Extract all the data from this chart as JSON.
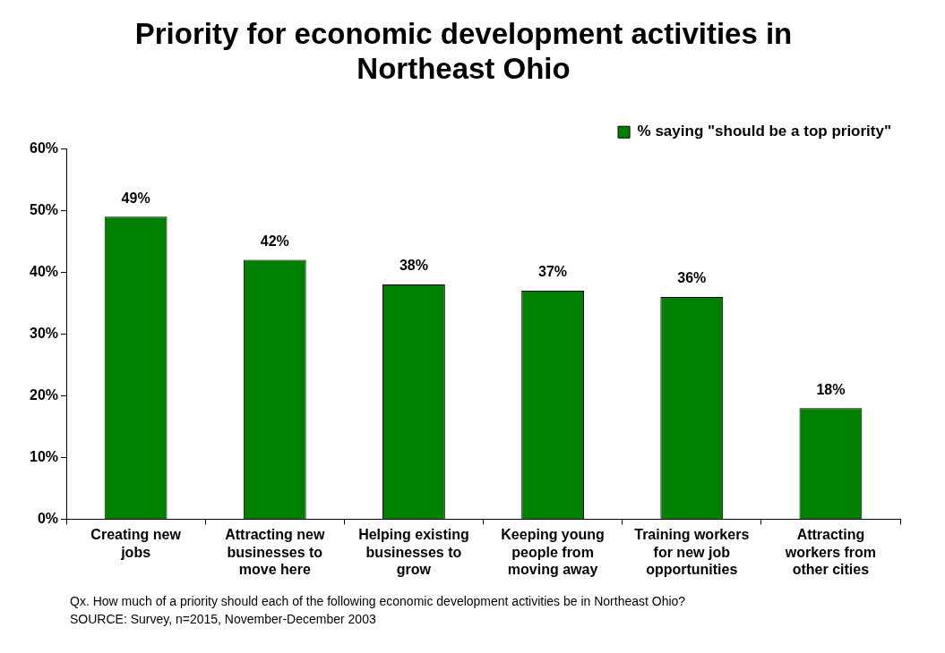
{
  "chart_data": {
    "type": "bar",
    "title": "Priority for economic development activities in Northeast Ohio",
    "categories": [
      "Creating new jobs",
      "Attracting new businesses to move here",
      "Helping existing businesses to grow",
      "Keeping young people from moving away",
      "Training workers for new job opportunities",
      "Attracting workers from other cities"
    ],
    "series": [
      {
        "name": "% saying \"should be a top priority\"",
        "color": "#008000",
        "values": [
          49,
          42,
          38,
          37,
          36,
          18
        ],
        "value_labels": [
          "49%",
          "42%",
          "38%",
          "37%",
          "36%",
          "18%"
        ]
      }
    ],
    "ylim": [
      0,
      60
    ],
    "yticks": [
      {
        "value": 0,
        "label": "0%"
      },
      {
        "value": 10,
        "label": "10%"
      },
      {
        "value": 20,
        "label": "20%"
      },
      {
        "value": 30,
        "label": "30%"
      },
      {
        "value": 40,
        "label": "40%"
      },
      {
        "value": 50,
        "label": "50%"
      },
      {
        "value": 60,
        "label": "60%"
      }
    ],
    "grid": false,
    "legend": "top right",
    "annotations": [
      "Qx.  How much of a priority should each of the following economic development activities be in Northeast Ohio?",
      "SOURCE:  Survey, n=2015, November-December 2003"
    ]
  }
}
